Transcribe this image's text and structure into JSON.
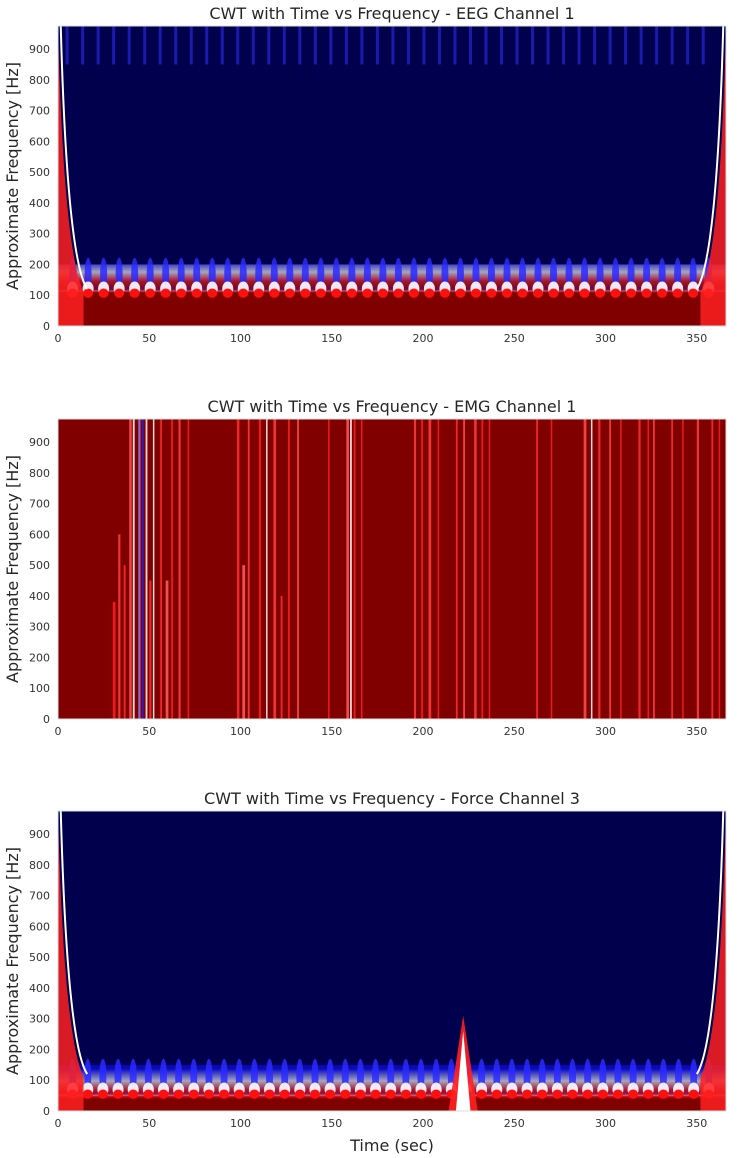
{
  "chart_data": [
    {
      "type": "heatmap",
      "title": "CWT with Time vs Frequency - EEG Channel 1",
      "xlabel": "",
      "ylabel": "Approximate Frequency [Hz]",
      "xlim": [
        0,
        366
      ],
      "ylim": [
        0,
        975
      ],
      "xticks": [
        0,
        50,
        100,
        150,
        200,
        250,
        300,
        350
      ],
      "yticks": [
        0,
        100,
        200,
        300,
        400,
        500,
        600,
        700,
        800,
        900
      ],
      "colormap": "seismic",
      "pattern": "low-frequency band (0–~110 Hz) dark red with a periodic ridge of red/white lobes at ~80–140 Hz; everything above ~200 Hz dark navy; edges bend upward toward red near t=0 and t=366",
      "background_color": "#00004c",
      "high_color": "#800000"
    },
    {
      "type": "heatmap",
      "title": "CWT with Time vs Frequency - EMG Channel 1",
      "xlabel": "",
      "ylabel": "Approximate Frequency [Hz]",
      "xlim": [
        0,
        366
      ],
      "ylim": [
        0,
        975
      ],
      "xticks": [
        0,
        50,
        100,
        150,
        200,
        250,
        300,
        350
      ],
      "yticks": [
        0,
        100,
        200,
        300,
        400,
        500,
        600,
        700,
        800,
        900
      ],
      "colormap": "seismic",
      "pattern": "mostly dark red across all frequencies with vertical bright red/white streaks; blue/white streaks near t≈45–50 s",
      "background_color": "#800000",
      "high_color": "#ff0000"
    },
    {
      "type": "heatmap",
      "title": "CWT with Time vs Frequency - Force Channel 3",
      "xlabel": "Time (sec)",
      "ylabel": "Approximate Frequency [Hz]",
      "xlim": [
        0,
        366
      ],
      "ylim": [
        0,
        975
      ],
      "xticks": [
        0,
        50,
        100,
        150,
        200,
        250,
        300,
        350
      ],
      "yticks": [
        0,
        100,
        200,
        300,
        400,
        500,
        600,
        700,
        800,
        900
      ],
      "colormap": "seismic",
      "pattern": "dark navy above ~150 Hz; dark red band at the bottom (~0–40 Hz) with row of red/white lobes near 50–80 Hz; bright vertical spike near t≈222 s up to ~300 Hz; edges curve upward at t=0 and t=366",
      "background_color": "#00004c",
      "high_color": "#800000"
    }
  ]
}
